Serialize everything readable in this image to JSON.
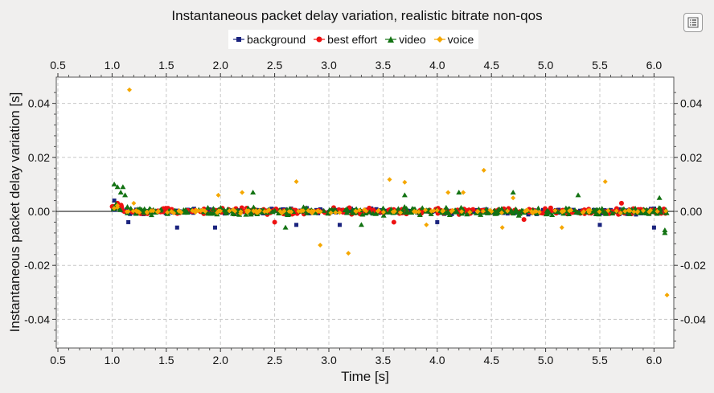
{
  "chart_data": {
    "type": "scatter",
    "title": "Instantaneous packet delay variation, realistic bitrate non-qos",
    "xlabel": "Time [s]",
    "ylabel": "Instantaneous packet delay variation [s]",
    "xlim": [
      0.5,
      6.2
    ],
    "ylim": [
      -0.05,
      0.05
    ],
    "x_ticks": [
      "0.5",
      "1.0",
      "1.5",
      "2.0",
      "2.5",
      "3.0",
      "3.5",
      "4.0",
      "4.5",
      "5.0",
      "5.5",
      "6.0"
    ],
    "y_ticks": [
      "0.04",
      "0.02",
      "0.00",
      "-0.02",
      "-0.04"
    ],
    "grid": true,
    "legend_position": "top-center",
    "series": [
      {
        "name": "background",
        "color": "#1a237e",
        "marker": "square",
        "x_range": [
          1.0,
          6.12
        ],
        "spread": 0.0015,
        "outliers": [
          [
            1.15,
            -0.004
          ],
          [
            1.6,
            -0.006
          ],
          [
            1.95,
            -0.006
          ],
          [
            2.7,
            -0.005
          ],
          [
            3.1,
            -0.005
          ],
          [
            4.0,
            -0.004
          ],
          [
            5.5,
            -0.005
          ],
          [
            6.0,
            -0.006
          ],
          [
            1.02,
            0.004
          ]
        ]
      },
      {
        "name": "best effort",
        "color": "#ee1111",
        "marker": "circle",
        "x_range": [
          1.0,
          6.12
        ],
        "spread": 0.0018,
        "outliers": [
          [
            1.05,
            0.003
          ],
          [
            2.5,
            -0.004
          ],
          [
            3.6,
            -0.004
          ],
          [
            4.8,
            -0.003
          ],
          [
            5.7,
            0.003
          ]
        ]
      },
      {
        "name": "video",
        "color": "#137313",
        "marker": "triangle",
        "x_range": [
          1.0,
          6.12
        ],
        "spread": 0.0022,
        "outliers": [
          [
            1.02,
            0.01
          ],
          [
            1.05,
            0.009
          ],
          [
            1.1,
            0.009
          ],
          [
            1.08,
            0.007
          ],
          [
            1.12,
            0.006
          ],
          [
            2.3,
            0.007
          ],
          [
            3.7,
            0.006
          ],
          [
            4.2,
            0.007
          ],
          [
            4.7,
            0.007
          ],
          [
            5.3,
            0.006
          ],
          [
            6.05,
            0.005
          ],
          [
            6.1,
            -0.007
          ],
          [
            6.1,
            -0.008
          ],
          [
            2.6,
            -0.006
          ],
          [
            3.3,
            -0.005
          ]
        ]
      },
      {
        "name": "voice",
        "color": "#f5a700",
        "marker": "diamond",
        "x_range": [
          1.0,
          6.12
        ],
        "spread": 0.001,
        "outliers": [
          [
            1.16,
            0.045
          ],
          [
            1.2,
            0.003
          ],
          [
            1.98,
            0.006
          ],
          [
            2.2,
            0.007
          ],
          [
            2.7,
            0.011
          ],
          [
            3.18,
            -0.0155
          ],
          [
            2.92,
            -0.0125
          ],
          [
            3.56,
            0.0118
          ],
          [
            3.7,
            0.0108
          ],
          [
            4.1,
            0.007
          ],
          [
            4.24,
            0.007
          ],
          [
            4.43,
            0.0152
          ],
          [
            4.6,
            -0.006
          ],
          [
            4.7,
            0.005
          ],
          [
            5.15,
            -0.006
          ],
          [
            5.55,
            0.011
          ],
          [
            5.85,
            0.0
          ],
          [
            6.12,
            -0.031
          ],
          [
            3.9,
            -0.005
          ]
        ]
      }
    ]
  }
}
